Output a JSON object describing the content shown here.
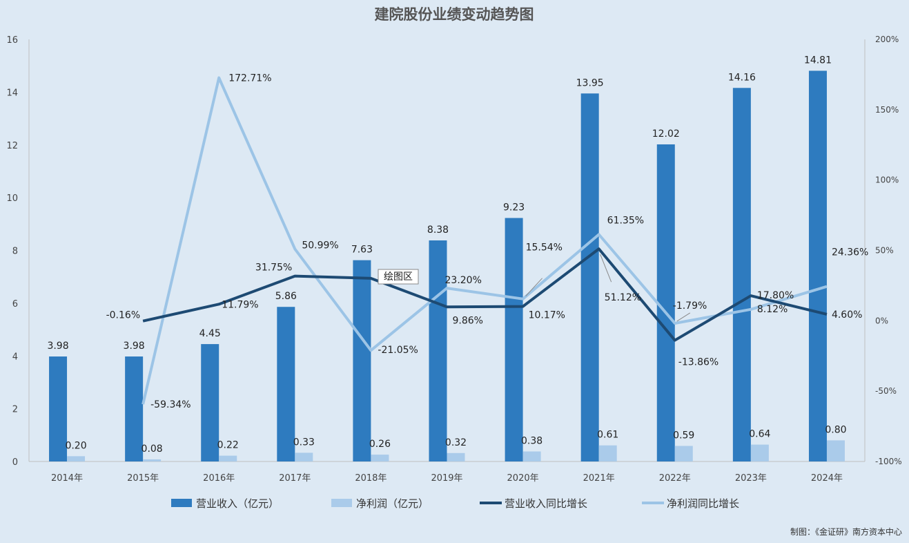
{
  "chart_data": {
    "type": "bar",
    "title": "建院股份业绩变动趋势图",
    "categories": [
      "2014年",
      "2015年",
      "2016年",
      "2017年",
      "2018年",
      "2019年",
      "2020年",
      "2021年",
      "2022年",
      "2023年",
      "2024年"
    ],
    "y_left": {
      "ylim": [
        0,
        16
      ],
      "ticks": [
        "0",
        "2",
        "4",
        "6",
        "8",
        "10",
        "12",
        "14",
        "16"
      ]
    },
    "y_right": {
      "ylim": [
        -100,
        200
      ],
      "ticks": [
        "-100%",
        "-50%",
        "0%",
        "50%",
        "100%",
        "150%",
        "200%"
      ]
    },
    "grid": false,
    "legend_position": "bottom",
    "series": [
      {
        "name": "营业收入（亿元）",
        "kind": "bar",
        "axis": "left",
        "color": "#2e7bbf",
        "values": [
          3.98,
          3.98,
          4.45,
          5.86,
          7.63,
          8.38,
          9.23,
          13.95,
          12.02,
          14.16,
          14.81
        ],
        "labels": [
          "3.98",
          "3.98",
          "4.45",
          "5.86",
          "7.63",
          "8.38",
          "9.23",
          "13.95",
          "12.02",
          "14.16",
          "14.81"
        ]
      },
      {
        "name": "净利润（亿元）",
        "kind": "bar",
        "axis": "left",
        "color": "#aacbea",
        "values": [
          0.2,
          0.08,
          0.22,
          0.33,
          0.26,
          0.32,
          0.38,
          0.61,
          0.59,
          0.64,
          0.8
        ],
        "labels": [
          "0.20",
          "0.08",
          "0.22",
          "0.33",
          "0.26",
          "0.32",
          "0.38",
          "0.61",
          "0.59",
          "0.64",
          "0.80"
        ]
      },
      {
        "name": "营业收入同比增长",
        "kind": "line",
        "axis": "right",
        "color": "#1d4a73",
        "values": [
          null,
          -0.16,
          11.79,
          31.75,
          30.2,
          9.86,
          10.17,
          51.12,
          -13.86,
          17.8,
          4.6
        ],
        "labels": [
          null,
          "-0.16%",
          "11.79%",
          "31.75%",
          null,
          "9.86%",
          "10.17%",
          "51.12%",
          "-13.86%",
          "17.80%",
          "4.60%"
        ]
      },
      {
        "name": "净利润同比增长",
        "kind": "line",
        "axis": "right",
        "color": "#9cc4e6",
        "values": [
          null,
          -59.34,
          172.71,
          50.99,
          -21.05,
          23.2,
          15.54,
          61.35,
          -1.79,
          8.12,
          24.36
        ],
        "labels": [
          null,
          "-59.34%",
          "172.71%",
          "50.99%",
          "-21.05%",
          "23.20%",
          "15.54%",
          "61.35%",
          "-1.79%",
          "8.12%",
          "24.36%"
        ]
      }
    ],
    "annotation": "绘图区"
  },
  "credit": "制图：《金证研》南方资本中心"
}
